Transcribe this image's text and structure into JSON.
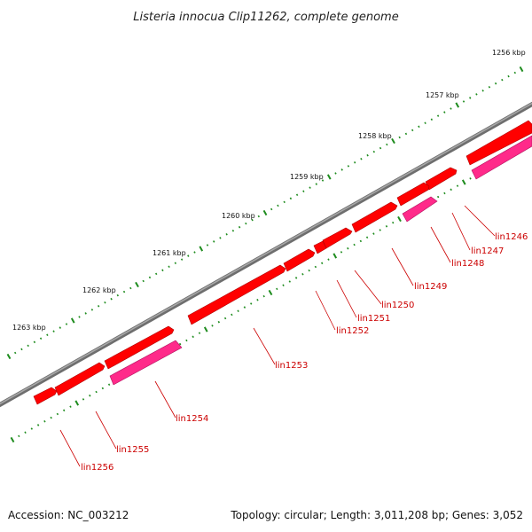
{
  "title": "Listeria innocua Clip11262, complete genome",
  "footer": {
    "accession": "Accession: NC_003212",
    "summary": "Topology: circular; Length: 3,011,208 bp; Genes: 3,052"
  },
  "colors": {
    "backbone": "#7f7f7f",
    "gene_forward": "#ff0000",
    "gene_reverse": "#ff2a8a",
    "ticks": "#1e8c1e",
    "label": "#cc0000"
  },
  "scale": {
    "labels": [
      "1256 kbp",
      "1257 kbp",
      "1258 kbp",
      "1259 kbp",
      "1260 kbp",
      "1261 kbp",
      "1262 kbp",
      "1263 kbp"
    ]
  },
  "genes": [
    {
      "label": "lin1246"
    },
    {
      "label": "lin1247"
    },
    {
      "label": "lin1248"
    },
    {
      "label": "lin1249"
    },
    {
      "label": "lin1250"
    },
    {
      "label": "lin1251"
    },
    {
      "label": "lin1252"
    },
    {
      "label": "lin1253"
    },
    {
      "label": "lin1254"
    },
    {
      "label": "lin1255"
    },
    {
      "label": "lin1256"
    }
  ]
}
